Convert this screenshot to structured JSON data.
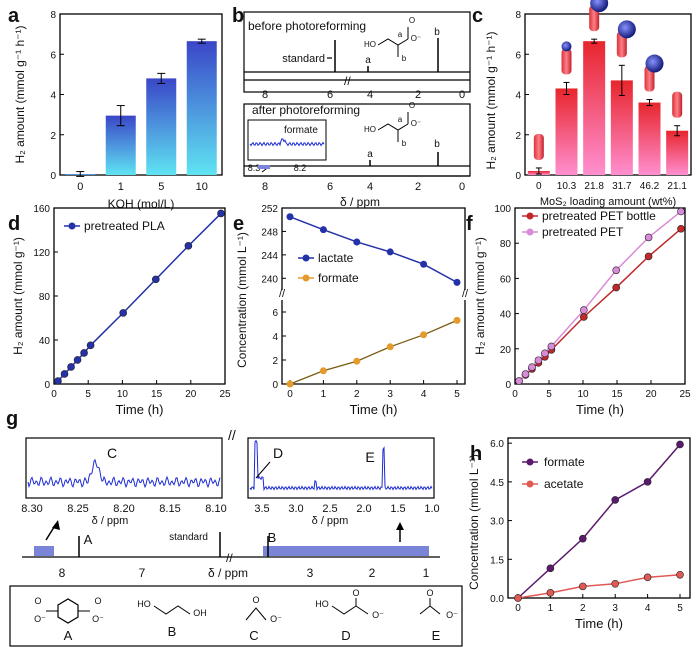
{
  "chart_data": [
    {
      "panel": "a",
      "type": "bar",
      "title": "",
      "xlabel": "KOH (mol/L)",
      "ylabel": "H₂ amount (mmol g⁻¹ h⁻¹)",
      "categories": [
        "0",
        "1",
        "5",
        "10"
      ],
      "values": [
        0.05,
        2.95,
        4.8,
        6.65
      ],
      "errors": [
        0.12,
        0.5,
        0.25,
        0.1
      ],
      "ylim": [
        0,
        8
      ],
      "yticks": [
        "0",
        "2",
        "4",
        "6",
        "8"
      ]
    },
    {
      "panel": "b",
      "type": "nmr",
      "xlabel": "δ / ppm",
      "top_title": "before photoreforming",
      "bottom_title": "after photoreforming",
      "standard_label": "standard",
      "peak_labels": [
        "a",
        "b",
        "a",
        "b"
      ],
      "xticks": [
        "8",
        "6",
        "4",
        "2",
        "0"
      ],
      "inset_label": "formate",
      "inset_ticks": [
        "8.3",
        "8.2"
      ],
      "struct_labels": [
        "HO",
        "O",
        "O⁻",
        "a",
        "b"
      ]
    },
    {
      "panel": "c",
      "type": "bar",
      "xlabel": "MoS₂ loading amount (wt%)",
      "ylabel": "H₂ amount (mmol g⁻¹ h⁻¹)",
      "categories": [
        "0",
        "10.3",
        "21.8",
        "31.7",
        "46.2",
        "21.1"
      ],
      "values": [
        0.2,
        4.3,
        6.65,
        4.7,
        3.6,
        2.2
      ],
      "errors": [
        0.15,
        0.3,
        0.1,
        0.75,
        0.15,
        0.25
      ],
      "ylim": [
        0,
        8
      ],
      "yticks": [
        "0",
        "2",
        "4",
        "6",
        "8"
      ]
    },
    {
      "panel": "d",
      "type": "line",
      "xlabel": "Time (h)",
      "ylabel": "H₂ amount (mmol g⁻¹)",
      "series": [
        {
          "name": "pretreated PLA",
          "color": "#2431a8",
          "x": [
            0,
            1,
            2,
            3,
            4,
            5,
            10,
            15,
            20,
            25
          ],
          "y": [
            0,
            6.5,
            13,
            19.5,
            26,
            33,
            63,
            94,
            125,
            155
          ]
        }
      ],
      "xlim": [
        0,
        25
      ],
      "ylim": [
        0,
        160
      ],
      "xticks": [
        "0",
        "5",
        "10",
        "15",
        "20",
        "25"
      ],
      "yticks": [
        "0",
        "40",
        "80",
        "120",
        "160"
      ]
    },
    {
      "panel": "e",
      "type": "line",
      "xlabel": "Time (h)",
      "ylabel": "Concentration (mmol L⁻¹)",
      "series": [
        {
          "name": "lactate",
          "color": "#2431a8",
          "x": [
            0,
            1,
            2,
            3,
            4,
            5
          ],
          "y": [
            250.5,
            248.3,
            246.2,
            244.5,
            242.4,
            239.3
          ]
        },
        {
          "name": "formate",
          "color": "#e59a2c",
          "x": [
            0,
            1,
            2,
            3,
            4,
            5
          ],
          "y": [
            0,
            1.1,
            1.9,
            3.1,
            4.1,
            5.3
          ]
        }
      ],
      "ylim_top": [
        238,
        252
      ],
      "ylim_bottom": [
        0,
        7
      ],
      "yticks_top": [
        "240",
        "244",
        "248",
        "252"
      ],
      "yticks_bottom": [
        "0",
        "2",
        "4",
        "6"
      ],
      "xticks": [
        "0",
        "1",
        "2",
        "3",
        "4",
        "5"
      ]
    },
    {
      "panel": "f",
      "type": "line",
      "xlabel": "Time (h)",
      "ylabel": "H₂ amount (mmol g⁻¹)",
      "series": [
        {
          "name": "pretreated PET bottle",
          "color": "#c0282a",
          "x": [
            0,
            1,
            2,
            3,
            4,
            5,
            10,
            15,
            20,
            25
          ],
          "y": [
            0,
            3.5,
            7,
            10.5,
            14,
            18,
            37,
            54,
            72,
            88
          ]
        },
        {
          "name": "pretreated PET",
          "color": "#d98ad8",
          "x": [
            0,
            1,
            2,
            3,
            4,
            5,
            10,
            15,
            20,
            25
          ],
          "y": [
            0,
            4,
            8,
            12,
            16,
            20,
            41,
            64,
            83,
            98
          ]
        }
      ],
      "xlim": [
        0,
        25
      ],
      "ylim": [
        0,
        100
      ],
      "xticks": [
        "0",
        "5",
        "10",
        "15",
        "20",
        "25"
      ],
      "yticks": [
        "0",
        "20",
        "40",
        "60",
        "80",
        "100"
      ]
    },
    {
      "panel": "g",
      "type": "nmr",
      "xlabel": "δ / ppm",
      "inset1_ticks": [
        "8.30",
        "8.25",
        "8.20",
        "8.15",
        "8.10"
      ],
      "inset2_ticks": [
        "3.5",
        "3.0",
        "2.5",
        "2.0",
        "1.5",
        "1.0"
      ],
      "inset_xlabel": "δ / ppm",
      "main_ticks": [
        "8",
        "7",
        "3",
        "2",
        "1"
      ],
      "peak_labels": [
        "C",
        "D",
        "E",
        "A",
        "B"
      ],
      "standard_label": "standard",
      "structure_labels": [
        "A",
        "B",
        "C",
        "D",
        "E"
      ],
      "atom_labels": [
        "O⁻",
        "O",
        "HO",
        "OH"
      ]
    },
    {
      "panel": "h",
      "type": "line",
      "xlabel": "Time (h)",
      "ylabel": "Concentration (mmol L⁻¹)",
      "series": [
        {
          "name": "formate",
          "color": "#5b1a6e",
          "x": [
            0,
            1,
            2,
            3,
            4,
            5
          ],
          "y": [
            0,
            1.15,
            2.3,
            3.8,
            4.5,
            5.95
          ]
        },
        {
          "name": "acetate",
          "color": "#e05a55",
          "x": [
            0,
            1,
            2,
            3,
            4,
            5
          ],
          "y": [
            0,
            0.2,
            0.45,
            0.55,
            0.8,
            0.9
          ]
        }
      ],
      "xlim": [
        0,
        5
      ],
      "ylim": [
        0,
        6.2
      ],
      "xticks": [
        "0",
        "1",
        "2",
        "3",
        "4",
        "5"
      ],
      "yticks": [
        "0.0",
        "1.5",
        "3.0",
        "4.5",
        "6.0"
      ]
    }
  ]
}
